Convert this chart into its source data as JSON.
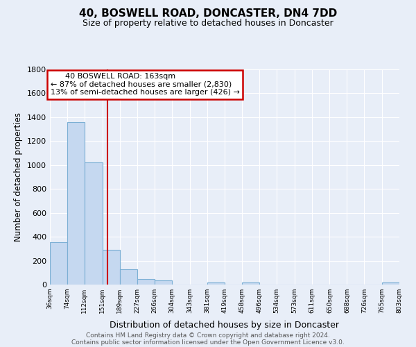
{
  "title": "40, BOSWELL ROAD, DONCASTER, DN4 7DD",
  "subtitle": "Size of property relative to detached houses in Doncaster",
  "xlabel": "Distribution of detached houses by size in Doncaster",
  "ylabel": "Number of detached properties",
  "bar_edges": [
    36,
    74,
    112,
    151,
    189,
    227,
    266,
    304,
    343,
    381,
    419,
    458,
    496,
    534,
    573,
    611,
    650,
    688,
    726,
    765,
    803
  ],
  "bar_heights": [
    355,
    1360,
    1020,
    290,
    130,
    45,
    35,
    0,
    0,
    20,
    0,
    20,
    0,
    0,
    0,
    0,
    0,
    0,
    0,
    20
  ],
  "bar_color": "#c5d8f0",
  "bar_edge_color": "#7bafd4",
  "red_line_x": 163,
  "annotation_title": "40 BOSWELL ROAD: 163sqm",
  "annotation_line1": "← 87% of detached houses are smaller (2,830)",
  "annotation_line2": "13% of semi-detached houses are larger (426) →",
  "annotation_box_color": "#ffffff",
  "annotation_box_edge": "#cc0000",
  "red_line_color": "#cc0000",
  "background_color": "#e8eef8",
  "grid_color": "#ffffff",
  "ylim": [
    0,
    1800
  ],
  "yticks": [
    0,
    200,
    400,
    600,
    800,
    1000,
    1200,
    1400,
    1600,
    1800
  ],
  "tick_labels": [
    "36sqm",
    "74sqm",
    "112sqm",
    "151sqm",
    "189sqm",
    "227sqm",
    "266sqm",
    "304sqm",
    "343sqm",
    "381sqm",
    "419sqm",
    "458sqm",
    "496sqm",
    "534sqm",
    "573sqm",
    "611sqm",
    "650sqm",
    "688sqm",
    "726sqm",
    "765sqm",
    "803sqm"
  ],
  "footer_line1": "Contains HM Land Registry data © Crown copyright and database right 2024.",
  "footer_line2": "Contains public sector information licensed under the Open Government Licence v3.0."
}
